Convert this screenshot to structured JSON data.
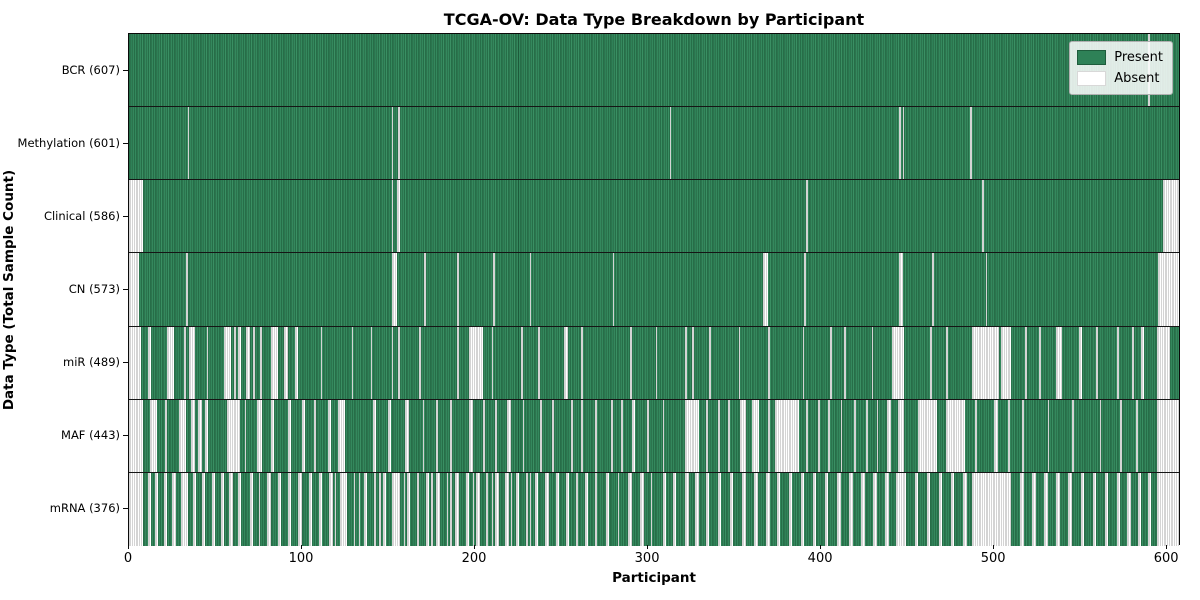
{
  "title": "TCGA-OV: Data Type Breakdown by Participant",
  "xlabel": "Participant",
  "ylabel": "Data Type (Total Sample Count)",
  "legend": {
    "present_label": "Present",
    "absent_label": "Absent",
    "position": "upper right"
  },
  "colors": {
    "present": "#2e8157",
    "present_light": "#3a8f63",
    "present_edge": "#1d5a3a",
    "absent": "#ffffff",
    "absent_edge": "#a8a8a8"
  },
  "chart_data": {
    "type": "heatmap",
    "title": "TCGA-OV: Data Type Breakdown by Participant",
    "xlabel": "Participant",
    "ylabel": "Data Type (Total Sample Count)",
    "n_participants": 608,
    "xlim": [
      0,
      608
    ],
    "x_ticks": [
      0,
      100,
      200,
      300,
      400,
      500,
      600
    ],
    "legend_entries": [
      "Present",
      "Absent"
    ],
    "value_encoding": {
      "present": "green cell",
      "absent": "white cell"
    },
    "rows": [
      {
        "label": "BCR (607)",
        "data_type": "BCR",
        "present_count": 607,
        "absent_ranges": [
          [
            590,
            591
          ]
        ]
      },
      {
        "label": "Methylation (601)",
        "data_type": "Methylation",
        "present_count": 601,
        "absent_ranges": [
          [
            34,
            35
          ],
          [
            152,
            153
          ],
          [
            156,
            157
          ],
          [
            313,
            314
          ],
          [
            446,
            447
          ],
          [
            448,
            449
          ],
          [
            487,
            488
          ]
        ]
      },
      {
        "label": "Clinical (586)",
        "data_type": "Clinical",
        "present_count": 586,
        "absent_ranges": [
          [
            0,
            8
          ],
          [
            152,
            153
          ],
          [
            155,
            157
          ],
          [
            392,
            393
          ],
          [
            494,
            495
          ],
          [
            599,
            608
          ]
        ]
      },
      {
        "label": "CN (573)",
        "data_type": "CN",
        "present_count": 573,
        "absent_ranges": [
          [
            0,
            6
          ],
          [
            33,
            34
          ],
          [
            152,
            155
          ],
          [
            171,
            172
          ],
          [
            190,
            191
          ],
          [
            211,
            212
          ],
          [
            232,
            233
          ],
          [
            280,
            281
          ],
          [
            367,
            370
          ],
          [
            391,
            392
          ],
          [
            446,
            448
          ],
          [
            465,
            466
          ],
          [
            496,
            497
          ],
          [
            596,
            608
          ]
        ]
      },
      {
        "label": "miR (489)",
        "data_type": "miR",
        "present_count": 489,
        "absent_ranges": [
          [
            0,
            7
          ],
          [
            11,
            13
          ],
          [
            22,
            26
          ],
          [
            32,
            33
          ],
          [
            35,
            38
          ],
          [
            45,
            46
          ],
          [
            55,
            59
          ],
          [
            61,
            62
          ],
          [
            63,
            65
          ],
          [
            68,
            70
          ],
          [
            72,
            73
          ],
          [
            76,
            77
          ],
          [
            82,
            86
          ],
          [
            90,
            92
          ],
          [
            96,
            98
          ],
          [
            111,
            112
          ],
          [
            129,
            130
          ],
          [
            140,
            141
          ],
          [
            152,
            153
          ],
          [
            156,
            157
          ],
          [
            168,
            169
          ],
          [
            190,
            191
          ],
          [
            197,
            205
          ],
          [
            210,
            211
          ],
          [
            227,
            228
          ],
          [
            237,
            238
          ],
          [
            252,
            254
          ],
          [
            262,
            263
          ],
          [
            290,
            291
          ],
          [
            305,
            306
          ],
          [
            322,
            323
          ],
          [
            326,
            327
          ],
          [
            336,
            337
          ],
          [
            353,
            354
          ],
          [
            370,
            371
          ],
          [
            390,
            391
          ],
          [
            406,
            407
          ],
          [
            414,
            415
          ],
          [
            430,
            431
          ],
          [
            442,
            449
          ],
          [
            464,
            465
          ],
          [
            473,
            474
          ],
          [
            488,
            504
          ],
          [
            505,
            511
          ],
          [
            519,
            520
          ],
          [
            527,
            528
          ],
          [
            537,
            540
          ],
          [
            550,
            552
          ],
          [
            560,
            561
          ],
          [
            572,
            573
          ],
          [
            581,
            582
          ],
          [
            586,
            588
          ],
          [
            595,
            603
          ]
        ]
      },
      {
        "label": "MAF (443)",
        "data_type": "MAF",
        "present_count": 443,
        "absent_ranges": [
          [
            0,
            8
          ],
          [
            12,
            16
          ],
          [
            21,
            22
          ],
          [
            29,
            33
          ],
          [
            36,
            38
          ],
          [
            40,
            42
          ],
          [
            44,
            46
          ],
          [
            57,
            64
          ],
          [
            67,
            68
          ],
          [
            74,
            77
          ],
          [
            82,
            84
          ],
          [
            92,
            94
          ],
          [
            100,
            102
          ],
          [
            107,
            108
          ],
          [
            115,
            117
          ],
          [
            121,
            125
          ],
          [
            141,
            143
          ],
          [
            150,
            152
          ],
          [
            160,
            162
          ],
          [
            170,
            171
          ],
          [
            178,
            179
          ],
          [
            186,
            187
          ],
          [
            197,
            199
          ],
          [
            205,
            206
          ],
          [
            212,
            213
          ],
          [
            219,
            221
          ],
          [
            228,
            229
          ],
          [
            238,
            239
          ],
          [
            245,
            246
          ],
          [
            256,
            257
          ],
          [
            262,
            263
          ],
          [
            270,
            271
          ],
          [
            279,
            280
          ],
          [
            285,
            286
          ],
          [
            291,
            293
          ],
          [
            300,
            301
          ],
          [
            309,
            310
          ],
          [
            322,
            330
          ],
          [
            334,
            335
          ],
          [
            341,
            342
          ],
          [
            347,
            348
          ],
          [
            354,
            357
          ],
          [
            361,
            365
          ],
          [
            370,
            371
          ],
          [
            374,
            388
          ],
          [
            392,
            393
          ],
          [
            399,
            400
          ],
          [
            405,
            406
          ],
          [
            412,
            413
          ],
          [
            420,
            421
          ],
          [
            427,
            428
          ],
          [
            433,
            434
          ],
          [
            439,
            441
          ],
          [
            445,
            449
          ],
          [
            457,
            468
          ],
          [
            473,
            484
          ],
          [
            490,
            491
          ],
          [
            501,
            503
          ],
          [
            509,
            510
          ],
          [
            517,
            518
          ],
          [
            532,
            533
          ],
          [
            546,
            547
          ],
          [
            562,
            563
          ],
          [
            574,
            575
          ],
          [
            583,
            584
          ],
          [
            595,
            608
          ]
        ]
      },
      {
        "label": "mRNA (376)",
        "data_type": "mRNA",
        "present_count": 376,
        "absent_ranges": [
          [
            0,
            8
          ],
          [
            11,
            13
          ],
          [
            15,
            17
          ],
          [
            20,
            22
          ],
          [
            25,
            27
          ],
          [
            30,
            34
          ],
          [
            37,
            39
          ],
          [
            42,
            44
          ],
          [
            48,
            50
          ],
          [
            53,
            55
          ],
          [
            58,
            60
          ],
          [
            63,
            65
          ],
          [
            70,
            72
          ],
          [
            75,
            76
          ],
          [
            80,
            82
          ],
          [
            86,
            88
          ],
          [
            92,
            94
          ],
          [
            98,
            100
          ],
          [
            104,
            106
          ],
          [
            110,
            112
          ],
          [
            116,
            118
          ],
          [
            119,
            120
          ],
          [
            122,
            126
          ],
          [
            130,
            131
          ],
          [
            133,
            134
          ],
          [
            136,
            138
          ],
          [
            142,
            143
          ],
          [
            145,
            146
          ],
          [
            147,
            149
          ],
          [
            152,
            157
          ],
          [
            159,
            160
          ],
          [
            161,
            163
          ],
          [
            167,
            168
          ],
          [
            172,
            174
          ],
          [
            175,
            176
          ],
          [
            178,
            180
          ],
          [
            184,
            185
          ],
          [
            186,
            187
          ],
          [
            189,
            191
          ],
          [
            195,
            197
          ],
          [
            199,
            200
          ],
          [
            201,
            203
          ],
          [
            207,
            208
          ],
          [
            210,
            211
          ],
          [
            212,
            214
          ],
          [
            218,
            220
          ],
          [
            221,
            222
          ],
          [
            224,
            226
          ],
          [
            230,
            231
          ],
          [
            232,
            233
          ],
          [
            235,
            237
          ],
          [
            241,
            243
          ],
          [
            247,
            249
          ],
          [
            253,
            255
          ],
          [
            259,
            260
          ],
          [
            264,
            266
          ],
          [
            270,
            271
          ],
          [
            276,
            278
          ],
          [
            283,
            284
          ],
          [
            289,
            291
          ],
          [
            296,
            298
          ],
          [
            302,
            303
          ],
          [
            309,
            311
          ],
          [
            315,
            317
          ],
          [
            322,
            324
          ],
          [
            328,
            330
          ],
          [
            334,
            336
          ],
          [
            341,
            343
          ],
          [
            348,
            350
          ],
          [
            355,
            357
          ],
          [
            362,
            364
          ],
          [
            369,
            371
          ],
          [
            375,
            377
          ],
          [
            382,
            384
          ],
          [
            389,
            391
          ],
          [
            396,
            398
          ],
          [
            403,
            405
          ],
          [
            410,
            412
          ],
          [
            417,
            419
          ],
          [
            424,
            426
          ],
          [
            431,
            433
          ],
          [
            438,
            440
          ],
          [
            444,
            450
          ],
          [
            455,
            457
          ],
          [
            462,
            464
          ],
          [
            469,
            471
          ],
          [
            476,
            478
          ],
          [
            483,
            485
          ],
          [
            488,
            511
          ],
          [
            516,
            518
          ],
          [
            523,
            525
          ],
          [
            530,
            532
          ],
          [
            537,
            539
          ],
          [
            544,
            546
          ],
          [
            551,
            553
          ],
          [
            558,
            560
          ],
          [
            565,
            567
          ],
          [
            572,
            574
          ],
          [
            578,
            580
          ],
          [
            584,
            586
          ],
          [
            590,
            592
          ],
          [
            595,
            608
          ]
        ]
      }
    ]
  }
}
